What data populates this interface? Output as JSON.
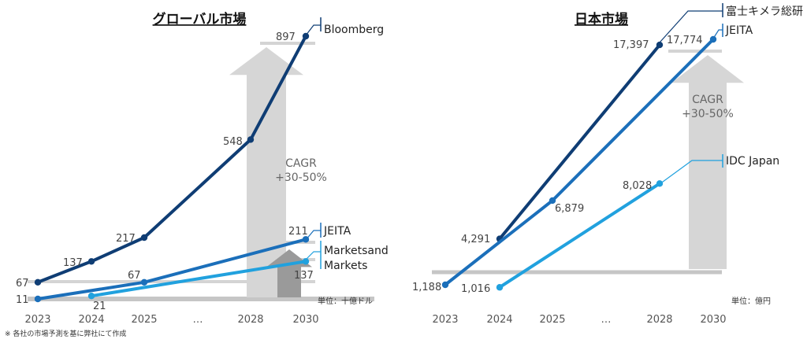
{
  "footnote": "※ 各社の市場予測を基に弊社にて作成",
  "chart_data": [
    {
      "type": "line",
      "title": "グローバル市場",
      "x_ticks": [
        "2023",
        "2024",
        "2025",
        "…",
        "2028",
        "2030"
      ],
      "unit_label": "単位：十億ドル",
      "cagr": [
        "CAGR",
        "+30-50%"
      ],
      "series": [
        {
          "name": "Bloomberg",
          "color": "#0f3d74",
          "points": [
            {
              "x": "2023",
              "y": 67,
              "label": "67"
            },
            {
              "x": "2024",
              "y": 137,
              "label": "137"
            },
            {
              "x": "2025",
              "y": 217,
              "label": "217"
            },
            {
              "x": "2028",
              "y": 548,
              "label": "548"
            },
            {
              "x": "2030",
              "y": 897,
              "label": "897"
            }
          ]
        },
        {
          "name": "JEITA",
          "color": "#1b6fba",
          "points": [
            {
              "x": "2023",
              "y": 11,
              "label": "11"
            },
            {
              "x": "2025",
              "y": 67,
              "label": "67"
            },
            {
              "x": "2030",
              "y": 211,
              "label": "211"
            }
          ]
        },
        {
          "name": "Marketsand\nMarkets",
          "color": "#21a1de",
          "points": [
            {
              "x": "2024",
              "y": 21,
              "label": "21"
            },
            {
              "x": "2030",
              "y": 137,
              "label": "137"
            }
          ]
        }
      ]
    },
    {
      "type": "line",
      "title": "日本市場",
      "x_ticks": [
        "2023",
        "2024",
        "2025",
        "…",
        "2028",
        "2030"
      ],
      "unit_label": "単位：億円",
      "cagr": [
        "CAGR",
        "+30-50%"
      ],
      "series": [
        {
          "name": "富士キメラ総研",
          "color": "#0f3d74",
          "points": [
            {
              "x": "2024",
              "y": 4291,
              "label": "4,291"
            },
            {
              "x": "2028",
              "y": 17397,
              "label": "17,397"
            }
          ]
        },
        {
          "name": "JEITA",
          "color": "#1b6fba",
          "points": [
            {
              "x": "2023",
              "y": 1188,
              "label": "1,188"
            },
            {
              "x": "2025",
              "y": 6879,
              "label": "6,879"
            },
            {
              "x": "2030",
              "y": 17774,
              "label": "17,774"
            }
          ]
        },
        {
          "name": "IDC Japan",
          "color": "#21a1de",
          "points": [
            {
              "x": "2024",
              "y": 1016,
              "label": "1,016"
            },
            {
              "x": "2028",
              "y": 8028,
              "label": "8,028"
            }
          ]
        }
      ]
    }
  ]
}
